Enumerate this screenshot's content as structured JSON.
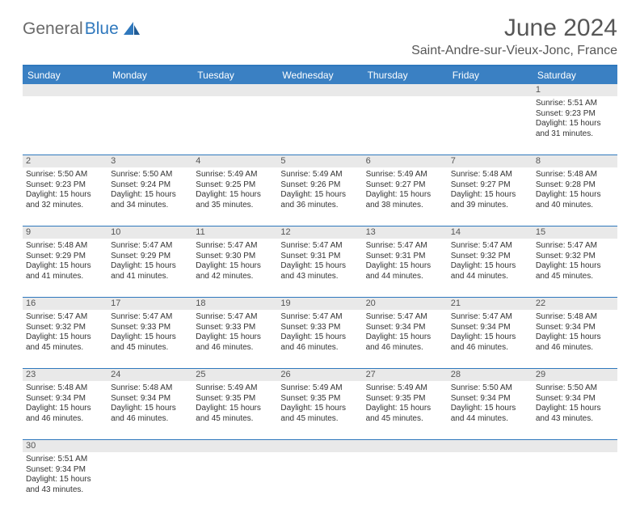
{
  "brand": {
    "text1": "General",
    "text2": "Blue"
  },
  "title": "June 2024",
  "location": "Saint-Andre-sur-Vieux-Jonc, France",
  "colors": {
    "header_blue": "#3a80c3",
    "border_blue": "#2f78bd",
    "daynum_bg": "#e9e9e9",
    "title_gray": "#575757"
  },
  "weekdays": [
    "Sunday",
    "Monday",
    "Tuesday",
    "Wednesday",
    "Thursday",
    "Friday",
    "Saturday"
  ],
  "weeks": [
    [
      {
        "n": "",
        "lines": []
      },
      {
        "n": "",
        "lines": []
      },
      {
        "n": "",
        "lines": []
      },
      {
        "n": "",
        "lines": []
      },
      {
        "n": "",
        "lines": []
      },
      {
        "n": "",
        "lines": []
      },
      {
        "n": "1",
        "lines": [
          "Sunrise: 5:51 AM",
          "Sunset: 9:23 PM",
          "Daylight: 15 hours",
          "and 31 minutes."
        ]
      }
    ],
    [
      {
        "n": "2",
        "lines": [
          "Sunrise: 5:50 AM",
          "Sunset: 9:23 PM",
          "Daylight: 15 hours",
          "and 32 minutes."
        ]
      },
      {
        "n": "3",
        "lines": [
          "Sunrise: 5:50 AM",
          "Sunset: 9:24 PM",
          "Daylight: 15 hours",
          "and 34 minutes."
        ]
      },
      {
        "n": "4",
        "lines": [
          "Sunrise: 5:49 AM",
          "Sunset: 9:25 PM",
          "Daylight: 15 hours",
          "and 35 minutes."
        ]
      },
      {
        "n": "5",
        "lines": [
          "Sunrise: 5:49 AM",
          "Sunset: 9:26 PM",
          "Daylight: 15 hours",
          "and 36 minutes."
        ]
      },
      {
        "n": "6",
        "lines": [
          "Sunrise: 5:49 AM",
          "Sunset: 9:27 PM",
          "Daylight: 15 hours",
          "and 38 minutes."
        ]
      },
      {
        "n": "7",
        "lines": [
          "Sunrise: 5:48 AM",
          "Sunset: 9:27 PM",
          "Daylight: 15 hours",
          "and 39 minutes."
        ]
      },
      {
        "n": "8",
        "lines": [
          "Sunrise: 5:48 AM",
          "Sunset: 9:28 PM",
          "Daylight: 15 hours",
          "and 40 minutes."
        ]
      }
    ],
    [
      {
        "n": "9",
        "lines": [
          "Sunrise: 5:48 AM",
          "Sunset: 9:29 PM",
          "Daylight: 15 hours",
          "and 41 minutes."
        ]
      },
      {
        "n": "10",
        "lines": [
          "Sunrise: 5:47 AM",
          "Sunset: 9:29 PM",
          "Daylight: 15 hours",
          "and 41 minutes."
        ]
      },
      {
        "n": "11",
        "lines": [
          "Sunrise: 5:47 AM",
          "Sunset: 9:30 PM",
          "Daylight: 15 hours",
          "and 42 minutes."
        ]
      },
      {
        "n": "12",
        "lines": [
          "Sunrise: 5:47 AM",
          "Sunset: 9:31 PM",
          "Daylight: 15 hours",
          "and 43 minutes."
        ]
      },
      {
        "n": "13",
        "lines": [
          "Sunrise: 5:47 AM",
          "Sunset: 9:31 PM",
          "Daylight: 15 hours",
          "and 44 minutes."
        ]
      },
      {
        "n": "14",
        "lines": [
          "Sunrise: 5:47 AM",
          "Sunset: 9:32 PM",
          "Daylight: 15 hours",
          "and 44 minutes."
        ]
      },
      {
        "n": "15",
        "lines": [
          "Sunrise: 5:47 AM",
          "Sunset: 9:32 PM",
          "Daylight: 15 hours",
          "and 45 minutes."
        ]
      }
    ],
    [
      {
        "n": "16",
        "lines": [
          "Sunrise: 5:47 AM",
          "Sunset: 9:32 PM",
          "Daylight: 15 hours",
          "and 45 minutes."
        ]
      },
      {
        "n": "17",
        "lines": [
          "Sunrise: 5:47 AM",
          "Sunset: 9:33 PM",
          "Daylight: 15 hours",
          "and 45 minutes."
        ]
      },
      {
        "n": "18",
        "lines": [
          "Sunrise: 5:47 AM",
          "Sunset: 9:33 PM",
          "Daylight: 15 hours",
          "and 46 minutes."
        ]
      },
      {
        "n": "19",
        "lines": [
          "Sunrise: 5:47 AM",
          "Sunset: 9:33 PM",
          "Daylight: 15 hours",
          "and 46 minutes."
        ]
      },
      {
        "n": "20",
        "lines": [
          "Sunrise: 5:47 AM",
          "Sunset: 9:34 PM",
          "Daylight: 15 hours",
          "and 46 minutes."
        ]
      },
      {
        "n": "21",
        "lines": [
          "Sunrise: 5:47 AM",
          "Sunset: 9:34 PM",
          "Daylight: 15 hours",
          "and 46 minutes."
        ]
      },
      {
        "n": "22",
        "lines": [
          "Sunrise: 5:48 AM",
          "Sunset: 9:34 PM",
          "Daylight: 15 hours",
          "and 46 minutes."
        ]
      }
    ],
    [
      {
        "n": "23",
        "lines": [
          "Sunrise: 5:48 AM",
          "Sunset: 9:34 PM",
          "Daylight: 15 hours",
          "and 46 minutes."
        ]
      },
      {
        "n": "24",
        "lines": [
          "Sunrise: 5:48 AM",
          "Sunset: 9:34 PM",
          "Daylight: 15 hours",
          "and 46 minutes."
        ]
      },
      {
        "n": "25",
        "lines": [
          "Sunrise: 5:49 AM",
          "Sunset: 9:35 PM",
          "Daylight: 15 hours",
          "and 45 minutes."
        ]
      },
      {
        "n": "26",
        "lines": [
          "Sunrise: 5:49 AM",
          "Sunset: 9:35 PM",
          "Daylight: 15 hours",
          "and 45 minutes."
        ]
      },
      {
        "n": "27",
        "lines": [
          "Sunrise: 5:49 AM",
          "Sunset: 9:35 PM",
          "Daylight: 15 hours",
          "and 45 minutes."
        ]
      },
      {
        "n": "28",
        "lines": [
          "Sunrise: 5:50 AM",
          "Sunset: 9:34 PM",
          "Daylight: 15 hours",
          "and 44 minutes."
        ]
      },
      {
        "n": "29",
        "lines": [
          "Sunrise: 5:50 AM",
          "Sunset: 9:34 PM",
          "Daylight: 15 hours",
          "and 43 minutes."
        ]
      }
    ],
    [
      {
        "n": "30",
        "lines": [
          "Sunrise: 5:51 AM",
          "Sunset: 9:34 PM",
          "Daylight: 15 hours",
          "and 43 minutes."
        ]
      },
      {
        "n": "",
        "lines": []
      },
      {
        "n": "",
        "lines": []
      },
      {
        "n": "",
        "lines": []
      },
      {
        "n": "",
        "lines": []
      },
      {
        "n": "",
        "lines": []
      },
      {
        "n": "",
        "lines": []
      }
    ]
  ]
}
